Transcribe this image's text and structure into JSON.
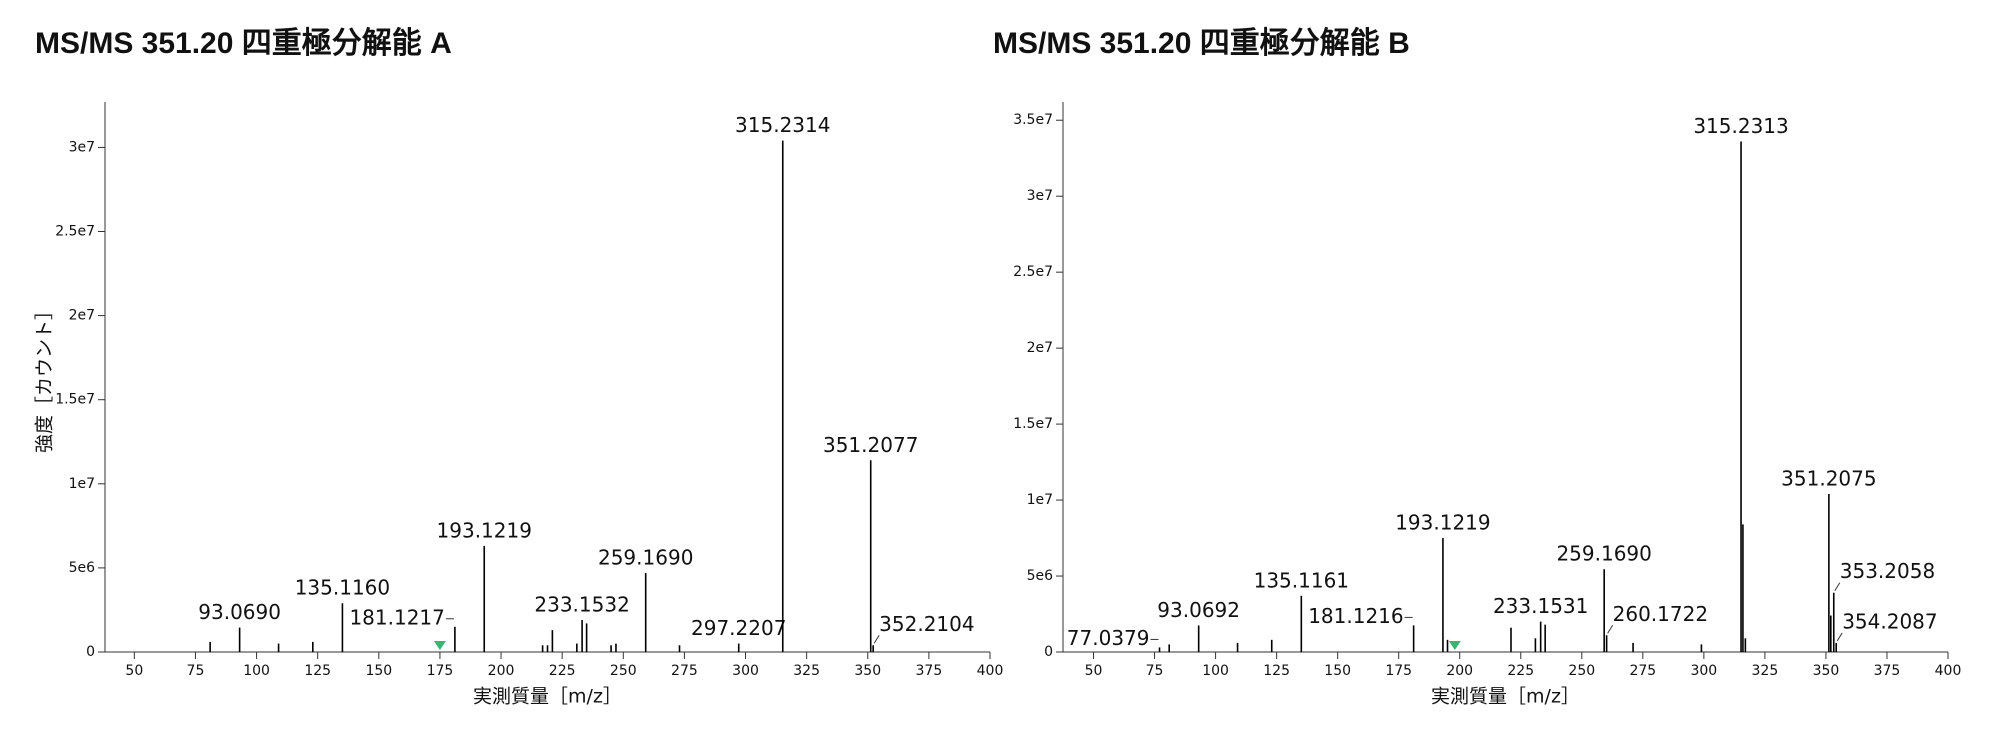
{
  "chart_data": [
    {
      "type": "bar",
      "title": "MS/MS 351.20 四重極分解能 A",
      "x_label": "実測質量［m/z］",
      "y_label": "強度［カウント］",
      "color": "#000000",
      "marker_color": "#3cb371",
      "marker_x": 175,
      "x": [
        81,
        93.069,
        109,
        123,
        135.116,
        181.1217,
        193.1219,
        217,
        219,
        221,
        231,
        233.1532,
        235,
        245,
        247,
        259.169,
        273,
        297.2207,
        315.2314,
        351.2077,
        352.2104
      ],
      "values": [
        600000,
        1450000,
        500000,
        600000,
        2900000,
        1500000,
        6300000,
        400000,
        400000,
        1300000,
        500000,
        1900000,
        1700000,
        400000,
        500000,
        4700000,
        400000,
        500000,
        30400000,
        11400000,
        400000
      ],
      "peak_labels": [
        null,
        "93.0690",
        null,
        null,
        "135.1160",
        "181.1217",
        "193.1219",
        null,
        null,
        null,
        null,
        "233.1532",
        null,
        null,
        null,
        "259.1690",
        null,
        "297.2207",
        "315.2314",
        "351.2077",
        "352.2104"
      ],
      "xlim": [
        38,
        400
      ],
      "xticks": [
        50,
        75,
        100,
        125,
        150,
        175,
        200,
        225,
        250,
        275,
        300,
        325,
        350,
        375,
        400
      ],
      "ylim": [
        0,
        32700000
      ],
      "yticks": [
        0,
        {
          "value": 5000000,
          "label": "5e6"
        },
        {
          "value": 10000000,
          "label": "1e7"
        },
        {
          "value": 15000000,
          "label": "1.5e7"
        },
        {
          "value": 20000000,
          "label": "2e7"
        },
        {
          "value": 25000000,
          "label": "2.5e7"
        },
        {
          "value": 30000000,
          "label": "3e7"
        }
      ]
    },
    {
      "type": "bar",
      "title": "MS/MS 351.20 四重極分解能 B",
      "x_label": "実測質量［m/z］",
      "color": "#000000",
      "marker_color": "#3cb371",
      "marker_x": 198,
      "x": [
        77.0379,
        81,
        93.0692,
        109,
        123,
        135.1161,
        181.1216,
        193.1219,
        195,
        221,
        231,
        233.1531,
        235,
        259.169,
        260.1722,
        271,
        299,
        315.2313,
        316,
        317,
        351.2075,
        352,
        353.2058,
        354.2087
      ],
      "values": [
        300000,
        500000,
        1750000,
        600000,
        800000,
        3700000,
        1750000,
        7500000,
        800000,
        1600000,
        900000,
        2000000,
        1800000,
        5450000,
        1100000,
        600000,
        500000,
        33600000,
        8400000,
        900000,
        10400000,
        2400000,
        3900000,
        600000
      ],
      "peak_labels": [
        "77.0379",
        null,
        "93.0692",
        null,
        null,
        "135.1161",
        "181.1216",
        "193.1219",
        null,
        null,
        null,
        "233.1531",
        null,
        "259.1690",
        "260.1722",
        null,
        null,
        "315.2313",
        null,
        null,
        "351.2075",
        null,
        "353.2058",
        "354.2087"
      ],
      "xlim": [
        37.5,
        400
      ],
      "xticks": [
        50,
        75,
        100,
        125,
        150,
        175,
        200,
        225,
        250,
        275,
        300,
        325,
        350,
        375,
        400
      ],
      "ylim": [
        0,
        36200000
      ],
      "yticks": [
        0,
        {
          "value": 5000000,
          "label": "5e6"
        },
        {
          "value": 10000000,
          "label": "1e7"
        },
        {
          "value": 15000000,
          "label": "1.5e7"
        },
        {
          "value": 20000000,
          "label": "2e7"
        },
        {
          "value": 25000000,
          "label": "2.5e7"
        },
        {
          "value": 30000000,
          "label": "3e7"
        },
        {
          "value": 35000000,
          "label": "3.5e7"
        }
      ]
    }
  ]
}
